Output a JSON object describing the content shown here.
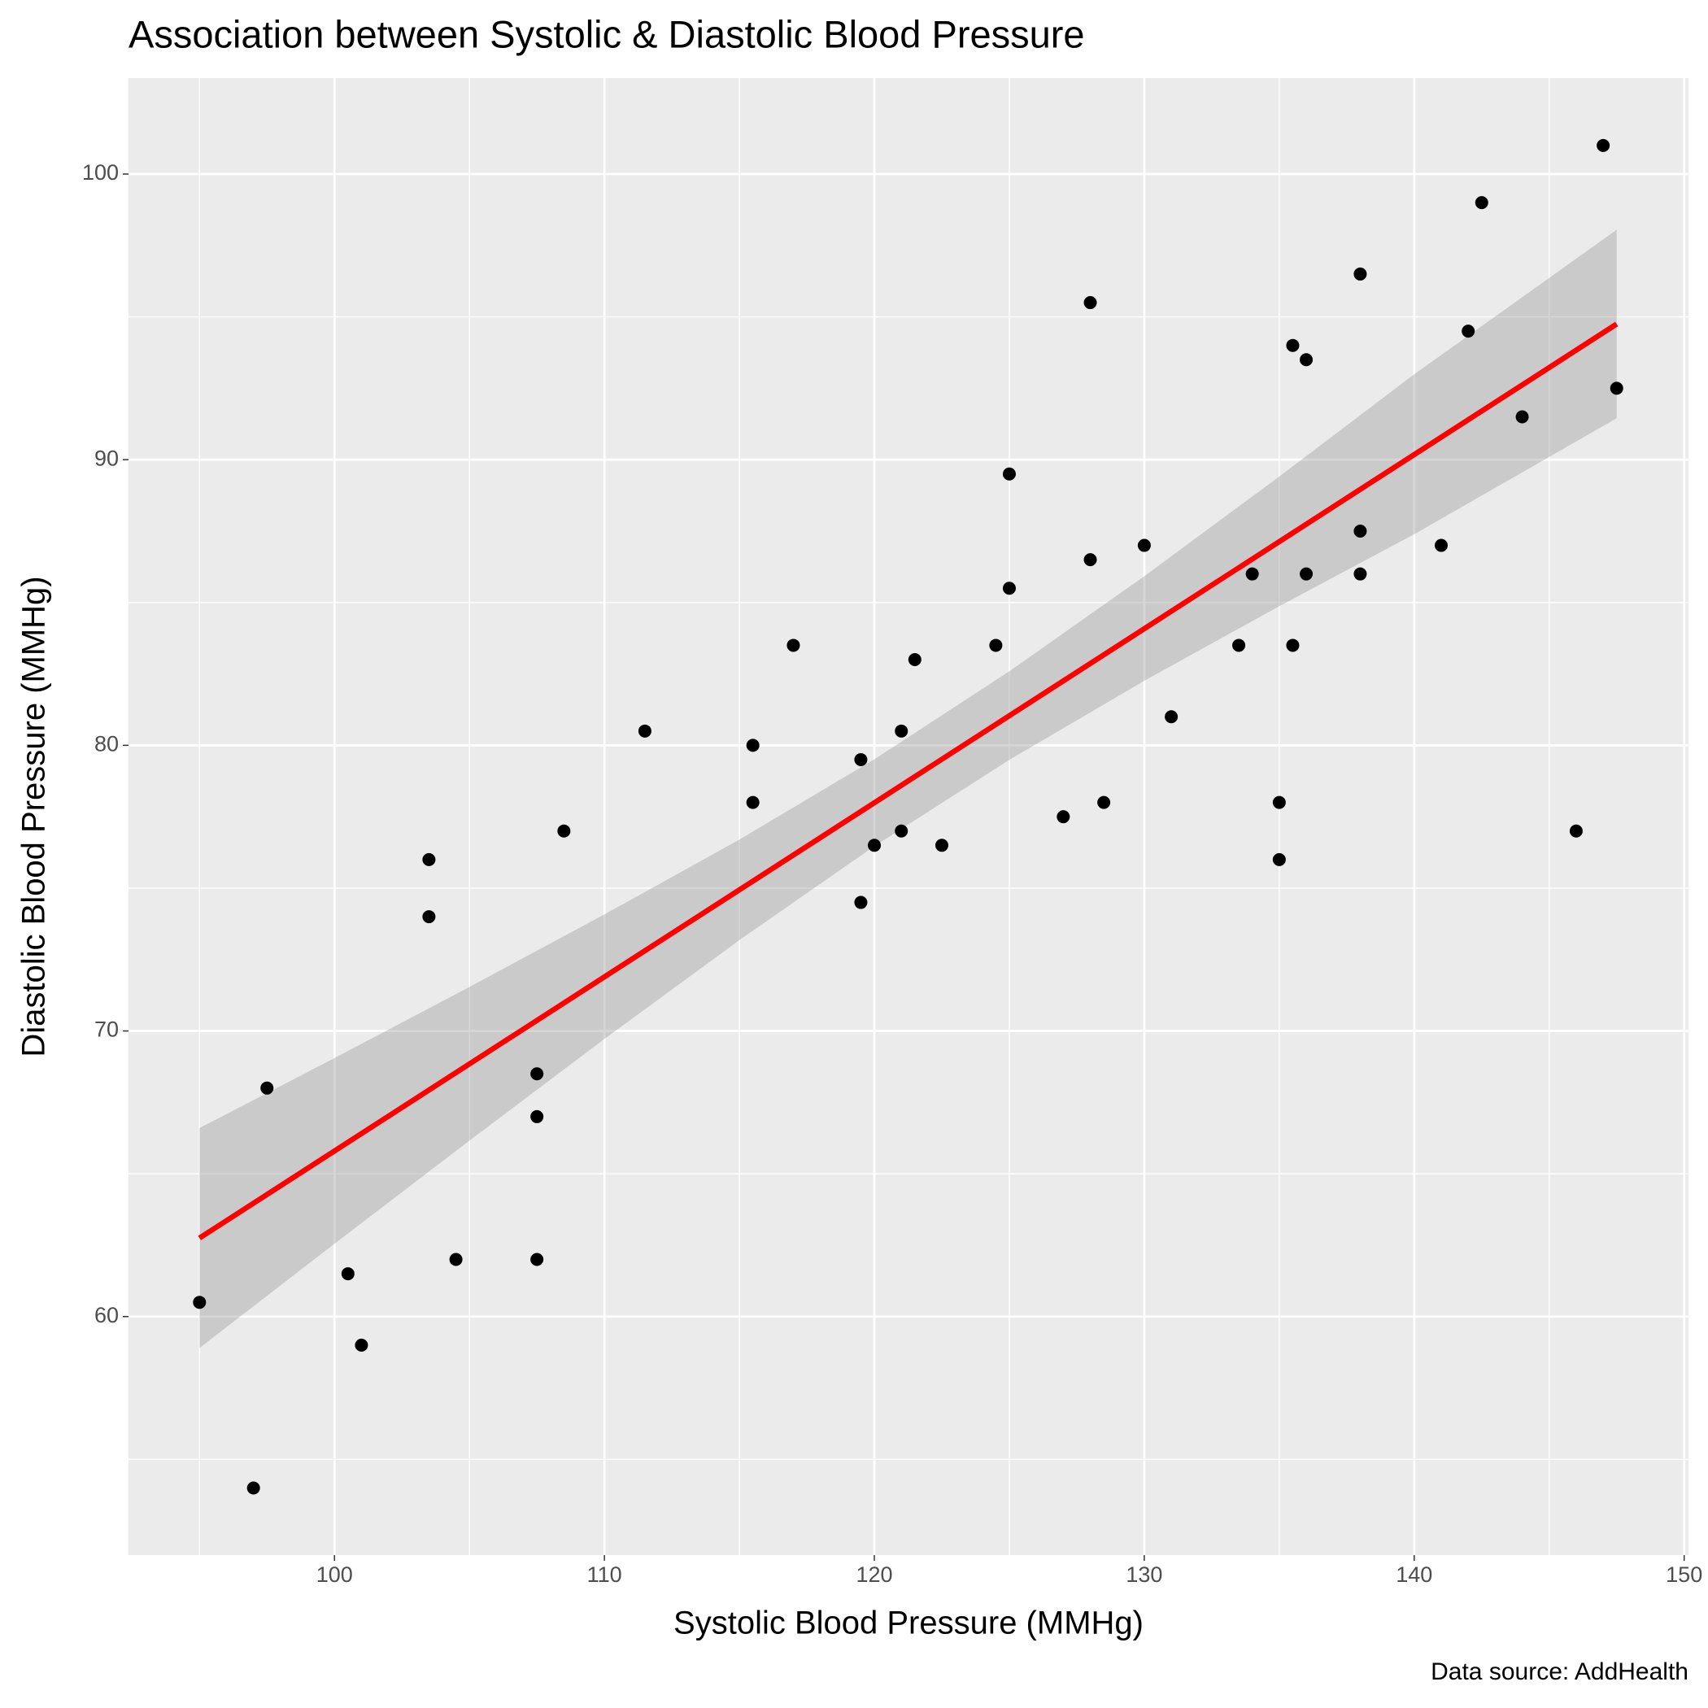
{
  "chart_data": {
    "type": "scatter",
    "title": "Association between Systolic & Diastolic Blood Pressure",
    "x_label": "Systolic Blood Pressure (MMHg)",
    "y_label": "Diastolic Blood Pressure (MMHg)",
    "caption": "Data source: AddHealth",
    "xlim": [
      92.37,
      150.16
    ],
    "ylim": [
      51.65,
      103.36
    ],
    "xticks": [
      100,
      110,
      120,
      130,
      140,
      150
    ],
    "yticks": [
      60,
      70,
      80,
      90,
      100
    ],
    "x_minor_ticks": [
      95,
      105,
      115,
      125,
      135,
      145
    ],
    "y_minor_ticks": [
      55,
      65,
      75,
      85,
      95
    ],
    "grid": true,
    "point_color": "#000000",
    "x": [
      95,
      97,
      97.5,
      100.5,
      101,
      103.5,
      103.5,
      104.5,
      107.5,
      107.5,
      107.5,
      108.5,
      111.5,
      115.5,
      115.5,
      117,
      119.5,
      119.5,
      120,
      121,
      121,
      121.5,
      122.5,
      124.5,
      125,
      125,
      127,
      128,
      128,
      128.5,
      130,
      131,
      133.5,
      134,
      135,
      135,
      135.5,
      135.5,
      136,
      136,
      138,
      138,
      138,
      141,
      142,
      142.5,
      144,
      146,
      147,
      147.5
    ],
    "y": [
      60.5,
      54,
      68,
      61.5,
      59,
      76,
      74,
      62,
      68.5,
      67,
      62,
      77,
      80.5,
      80,
      78,
      83.5,
      79.5,
      74.5,
      76.5,
      80.5,
      77,
      83,
      76.5,
      83.5,
      89.5,
      85.5,
      77.5,
      95.5,
      86.5,
      78,
      87,
      81,
      83.5,
      86,
      78,
      76,
      94,
      83.5,
      93.5,
      86,
      96.5,
      87.5,
      86,
      87,
      94.5,
      99,
      91.5,
      77,
      101,
      92.5
    ],
    "fit": {
      "color": "#ff0000",
      "x": [
        95,
        147.5
      ],
      "y": [
        62.75,
        94.75
      ]
    },
    "band": {
      "color": "#999999",
      "x": [
        95,
        100,
        105,
        110,
        115,
        120,
        125,
        130,
        135,
        140,
        147.5
      ],
      "lower": [
        58.9,
        62.55,
        66.16,
        69.72,
        73.18,
        76.47,
        79.49,
        82.26,
        84.87,
        87.39,
        91.45
      ],
      "upper": [
        66.6,
        69.05,
        71.54,
        74.08,
        76.7,
        79.51,
        82.59,
        85.92,
        89.41,
        92.99,
        98.05
      ]
    }
  }
}
